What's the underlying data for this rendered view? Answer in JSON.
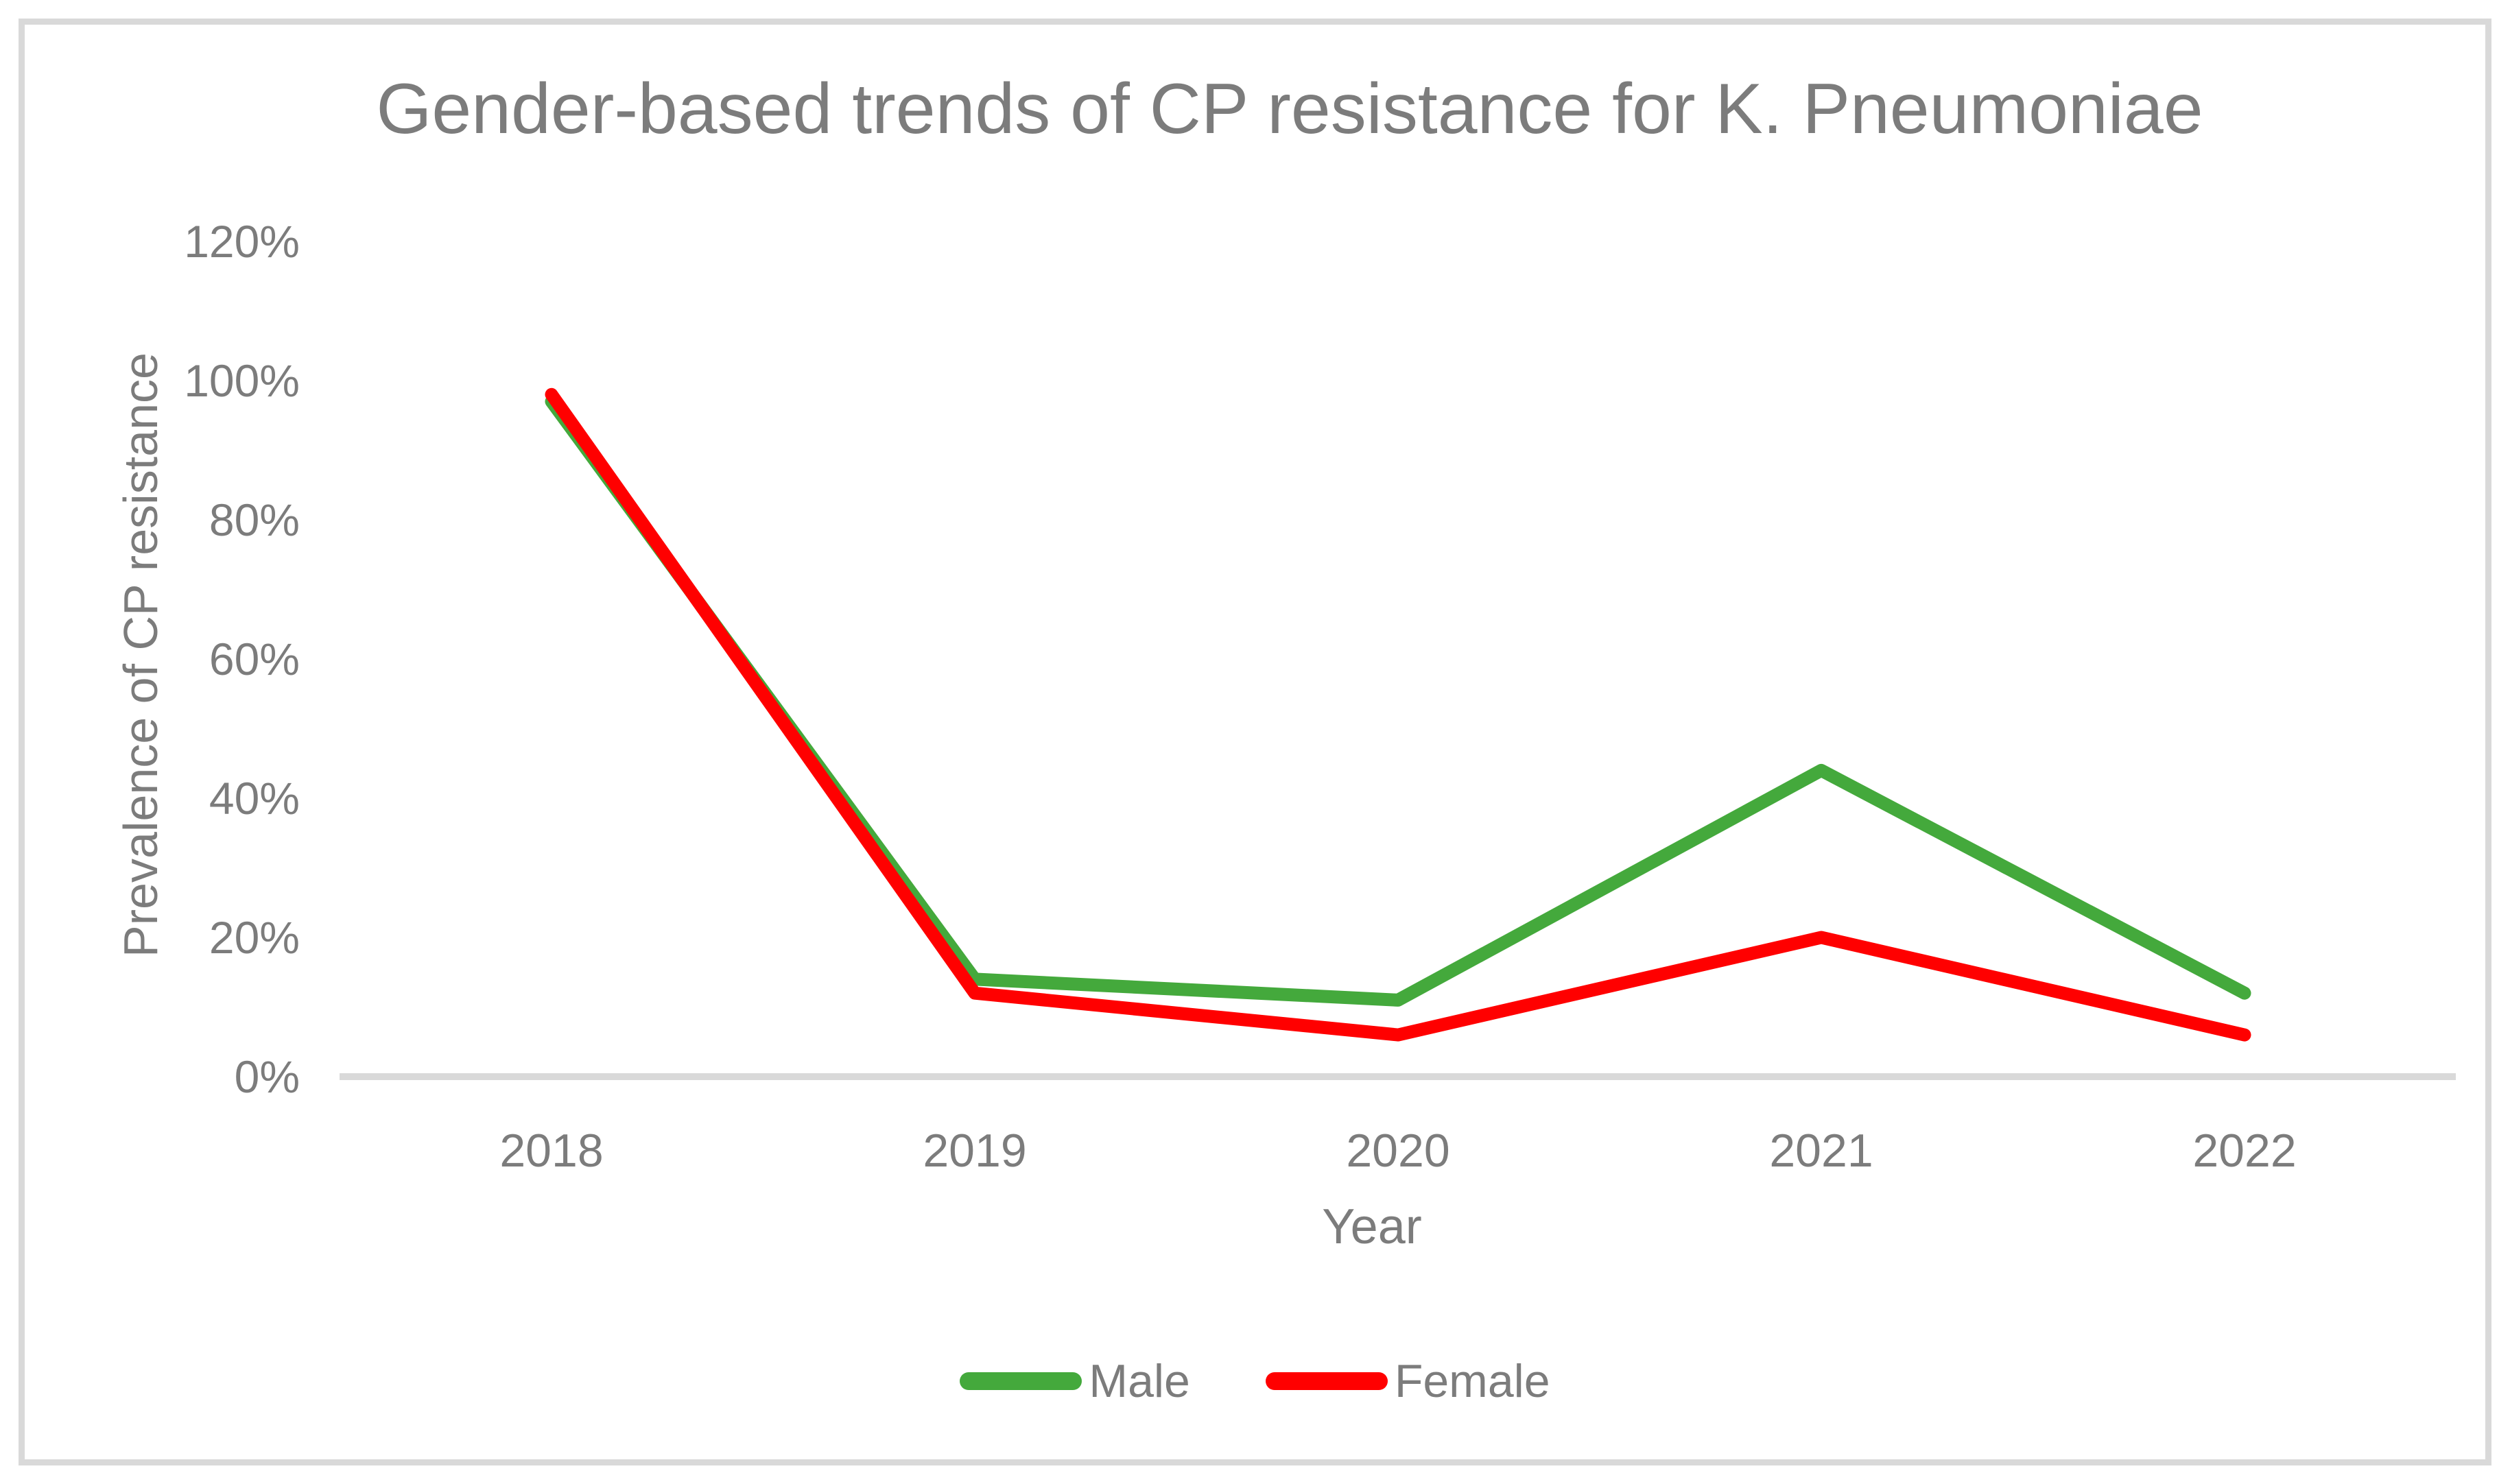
{
  "title": "Gender-based trends of CP resistance for K. Pneumoniae",
  "colors": {
    "male_series": "#44A93C",
    "female_series": "#FF0000",
    "text": "#7C7C7C",
    "axis_line": "#D9D9D9",
    "frame_border": "#D9D9D9",
    "background": "#FFFFFF"
  },
  "chart_data": {
    "type": "line",
    "title": "Gender-based trends of CP resistance for K. Pneumoniae",
    "xlabel": "Year",
    "ylabel": "Prevalence of CP resistance",
    "categories": [
      "2018",
      "2019",
      "2020",
      "2021",
      "2022"
    ],
    "series": [
      {
        "name": "Male",
        "color": "#44A93C",
        "values": [
          97,
          14,
          11,
          44,
          12
        ]
      },
      {
        "name": "Female",
        "color": "#FF0000",
        "values": [
          98,
          12,
          6,
          20,
          6
        ]
      }
    ],
    "values_unit": "%",
    "y_ticks": [
      0,
      20,
      40,
      60,
      80,
      100,
      120
    ],
    "y_tick_labels": [
      "0%",
      "20%",
      "40%",
      "60%",
      "80%",
      "100%",
      "120%"
    ],
    "ylim": [
      0,
      120
    ],
    "grid": false,
    "legend_position": "bottom"
  }
}
